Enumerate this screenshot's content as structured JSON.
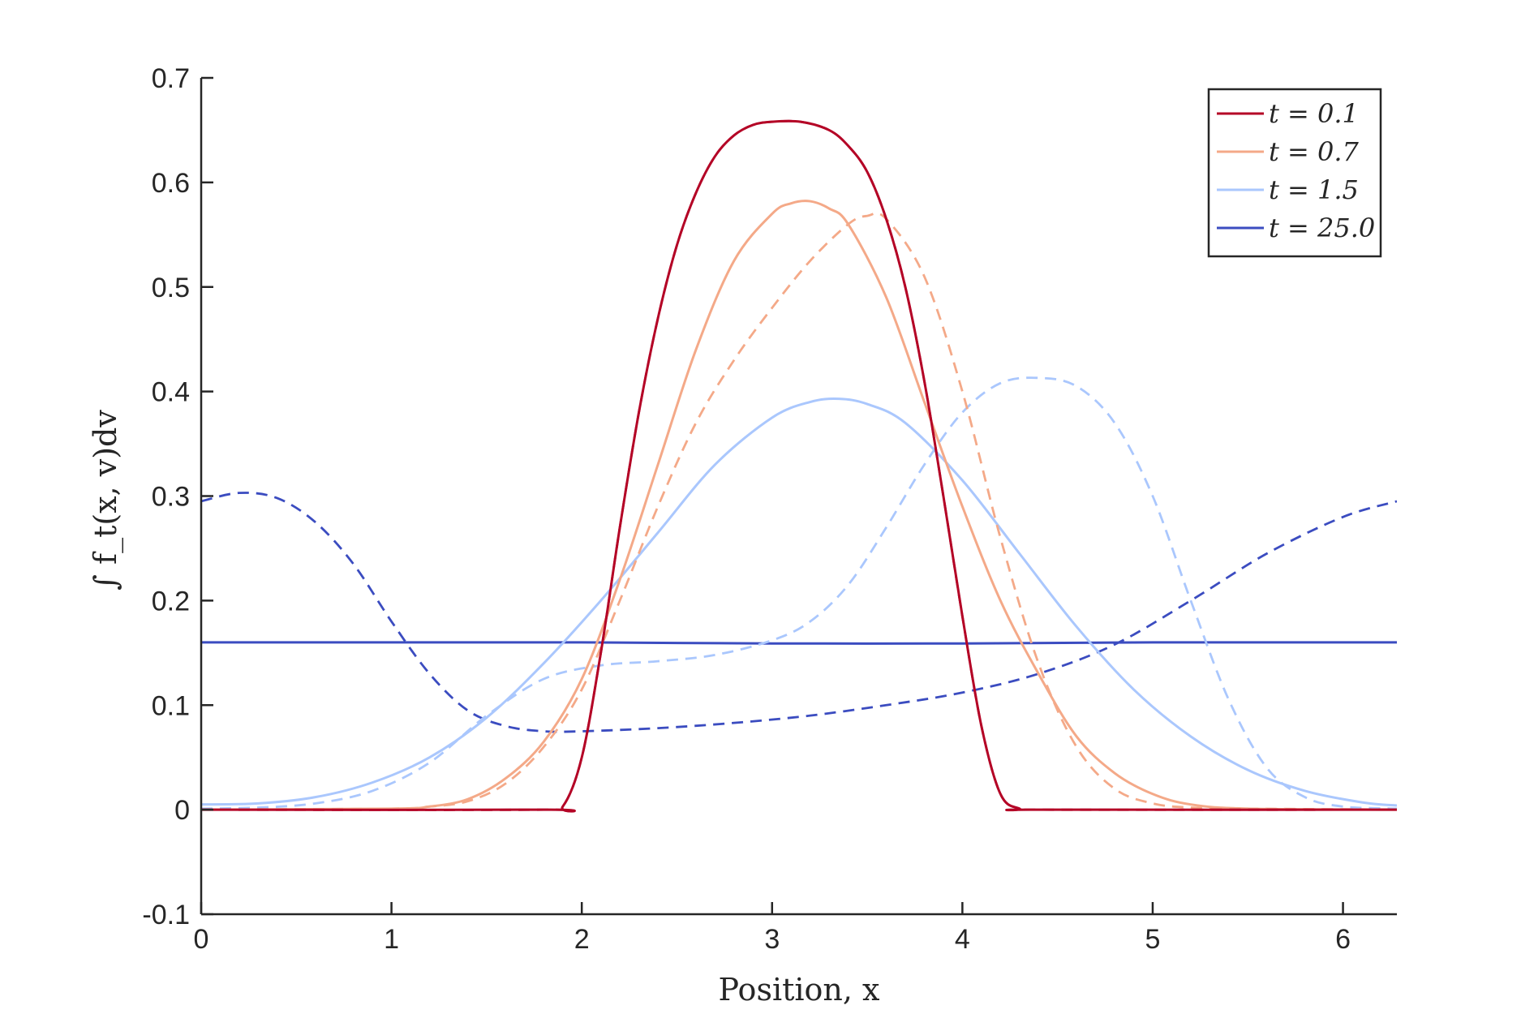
{
  "chart_data": {
    "type": "line",
    "title": "",
    "xlabel": "Position, x",
    "ylabel": "∫ f_t(x, v)dv",
    "xlim": [
      0,
      6.2832
    ],
    "ylim": [
      -0.1,
      0.7
    ],
    "x_ticks": [
      "0",
      "1",
      "2",
      "3",
      "4",
      "5",
      "6"
    ],
    "y_ticks": [
      "-0.1",
      "0",
      "0.1",
      "0.2",
      "0.3",
      "0.4",
      "0.5",
      "0.6",
      "0.7"
    ],
    "grid": false,
    "legend_position": "top-right",
    "legend": [
      "t = 0.1",
      "t = 0.7",
      "t = 1.5",
      "t = 25.0"
    ],
    "series": [
      {
        "name": "t = 0.1",
        "color": "#b40426",
        "style": "solid",
        "x": [
          0,
          1.8,
          1.9,
          2.0,
          2.1,
          2.2,
          2.3,
          2.4,
          2.5,
          2.6,
          2.7,
          2.8,
          2.9,
          3.0,
          3.15,
          3.3,
          3.4,
          3.5,
          3.6,
          3.7,
          3.8,
          3.9,
          4.0,
          4.1,
          4.2,
          4.3,
          4.4,
          6.2832
        ],
        "y": [
          0,
          0,
          0.003,
          0.05,
          0.15,
          0.27,
          0.38,
          0.47,
          0.54,
          0.59,
          0.625,
          0.645,
          0.655,
          0.658,
          0.658,
          0.65,
          0.635,
          0.61,
          0.565,
          0.5,
          0.41,
          0.3,
          0.185,
          0.08,
          0.015,
          0.001,
          0,
          0
        ]
      },
      {
        "name": "",
        "color": "#b40426",
        "style": "dashed",
        "x": [
          0,
          1.8,
          1.9,
          2.0,
          2.1,
          2.2,
          2.3,
          2.4,
          2.5,
          2.6,
          2.7,
          2.8,
          2.9,
          3.0,
          3.15,
          3.3,
          3.4,
          3.5,
          3.6,
          3.7,
          3.8,
          3.9,
          4.0,
          4.1,
          4.2,
          4.3,
          4.4,
          6.2832
        ],
        "y": [
          0,
          0,
          0.003,
          0.05,
          0.15,
          0.27,
          0.38,
          0.47,
          0.54,
          0.59,
          0.625,
          0.645,
          0.655,
          0.658,
          0.658,
          0.65,
          0.635,
          0.61,
          0.565,
          0.5,
          0.41,
          0.3,
          0.185,
          0.08,
          0.015,
          0.001,
          0,
          0
        ]
      },
      {
        "name": "t = 0.7",
        "color": "#f4a988",
        "style": "solid",
        "x": [
          0,
          1.0,
          1.2,
          1.4,
          1.6,
          1.8,
          2.0,
          2.2,
          2.4,
          2.6,
          2.8,
          3.0,
          3.1,
          3.2,
          3.3,
          3.4,
          3.6,
          3.8,
          4.0,
          4.2,
          4.4,
          4.6,
          4.8,
          5.0,
          5.2,
          5.5,
          6.2832
        ],
        "y": [
          0,
          0.001,
          0.003,
          0.01,
          0.03,
          0.065,
          0.125,
          0.22,
          0.33,
          0.44,
          0.525,
          0.57,
          0.58,
          0.582,
          0.575,
          0.56,
          0.49,
          0.39,
          0.29,
          0.2,
          0.13,
          0.07,
          0.035,
          0.015,
          0.005,
          0.001,
          0
        ]
      },
      {
        "name": "",
        "color": "#f4a988",
        "style": "dashed",
        "x": [
          0,
          1.0,
          1.2,
          1.4,
          1.6,
          1.8,
          2.0,
          2.2,
          2.4,
          2.6,
          2.8,
          3.0,
          3.2,
          3.4,
          3.5,
          3.6,
          3.8,
          4.0,
          4.2,
          4.4,
          4.6,
          4.8,
          5.0,
          5.2,
          5.5,
          6.2832
        ],
        "y": [
          0,
          0.001,
          0.003,
          0.008,
          0.025,
          0.06,
          0.115,
          0.2,
          0.29,
          0.37,
          0.43,
          0.48,
          0.525,
          0.56,
          0.568,
          0.565,
          0.51,
          0.4,
          0.26,
          0.14,
          0.06,
          0.02,
          0.006,
          0.002,
          0.001,
          0
        ]
      },
      {
        "name": "t = 1.5",
        "color": "#aac7fd",
        "style": "solid",
        "x": [
          0,
          0.3,
          0.6,
          0.9,
          1.2,
          1.5,
          1.8,
          2.1,
          2.4,
          2.7,
          3.0,
          3.2,
          3.35,
          3.5,
          3.7,
          4.0,
          4.3,
          4.6,
          4.9,
          5.2,
          5.5,
          5.8,
          6.1,
          6.2832
        ],
        "y": [
          0.005,
          0.006,
          0.012,
          0.026,
          0.05,
          0.088,
          0.14,
          0.2,
          0.265,
          0.33,
          0.375,
          0.39,
          0.393,
          0.388,
          0.37,
          0.315,
          0.245,
          0.175,
          0.115,
          0.07,
          0.038,
          0.018,
          0.007,
          0.004
        ]
      },
      {
        "name": "",
        "color": "#aac7fd",
        "style": "dashed",
        "x": [
          0,
          0.3,
          0.6,
          0.9,
          1.2,
          1.5,
          1.8,
          2.1,
          2.4,
          2.7,
          3.0,
          3.2,
          3.4,
          3.6,
          3.8,
          4.0,
          4.2,
          4.4,
          4.6,
          4.8,
          5.0,
          5.2,
          5.4,
          5.6,
          5.8,
          6.0,
          6.2832
        ],
        "y": [
          0.001,
          0.002,
          0.006,
          0.018,
          0.045,
          0.09,
          0.125,
          0.138,
          0.142,
          0.148,
          0.162,
          0.18,
          0.215,
          0.27,
          0.33,
          0.38,
          0.408,
          0.413,
          0.405,
          0.37,
          0.3,
          0.2,
          0.105,
          0.04,
          0.012,
          0.003,
          0.001
        ]
      },
      {
        "name": "t = 25.0",
        "color": "#3b4cc0",
        "style": "solid",
        "x": [
          0,
          1.0,
          2.0,
          3.0,
          4.0,
          5.0,
          6.0,
          6.2832
        ],
        "y": [
          0.16,
          0.16,
          0.16,
          0.159,
          0.159,
          0.16,
          0.16,
          0.16
        ]
      },
      {
        "name": "",
        "color": "#3b4cc0",
        "style": "dashed",
        "x": [
          0,
          0.2,
          0.4,
          0.6,
          0.8,
          1.0,
          1.2,
          1.4,
          1.6,
          1.8,
          2.0,
          2.4,
          2.8,
          3.2,
          3.6,
          4.0,
          4.4,
          4.8,
          5.2,
          5.6,
          6.0,
          6.2832
        ],
        "y": [
          0.295,
          0.303,
          0.298,
          0.275,
          0.235,
          0.18,
          0.13,
          0.095,
          0.08,
          0.075,
          0.075,
          0.078,
          0.083,
          0.09,
          0.1,
          0.112,
          0.13,
          0.158,
          0.2,
          0.245,
          0.28,
          0.295
        ]
      }
    ]
  }
}
